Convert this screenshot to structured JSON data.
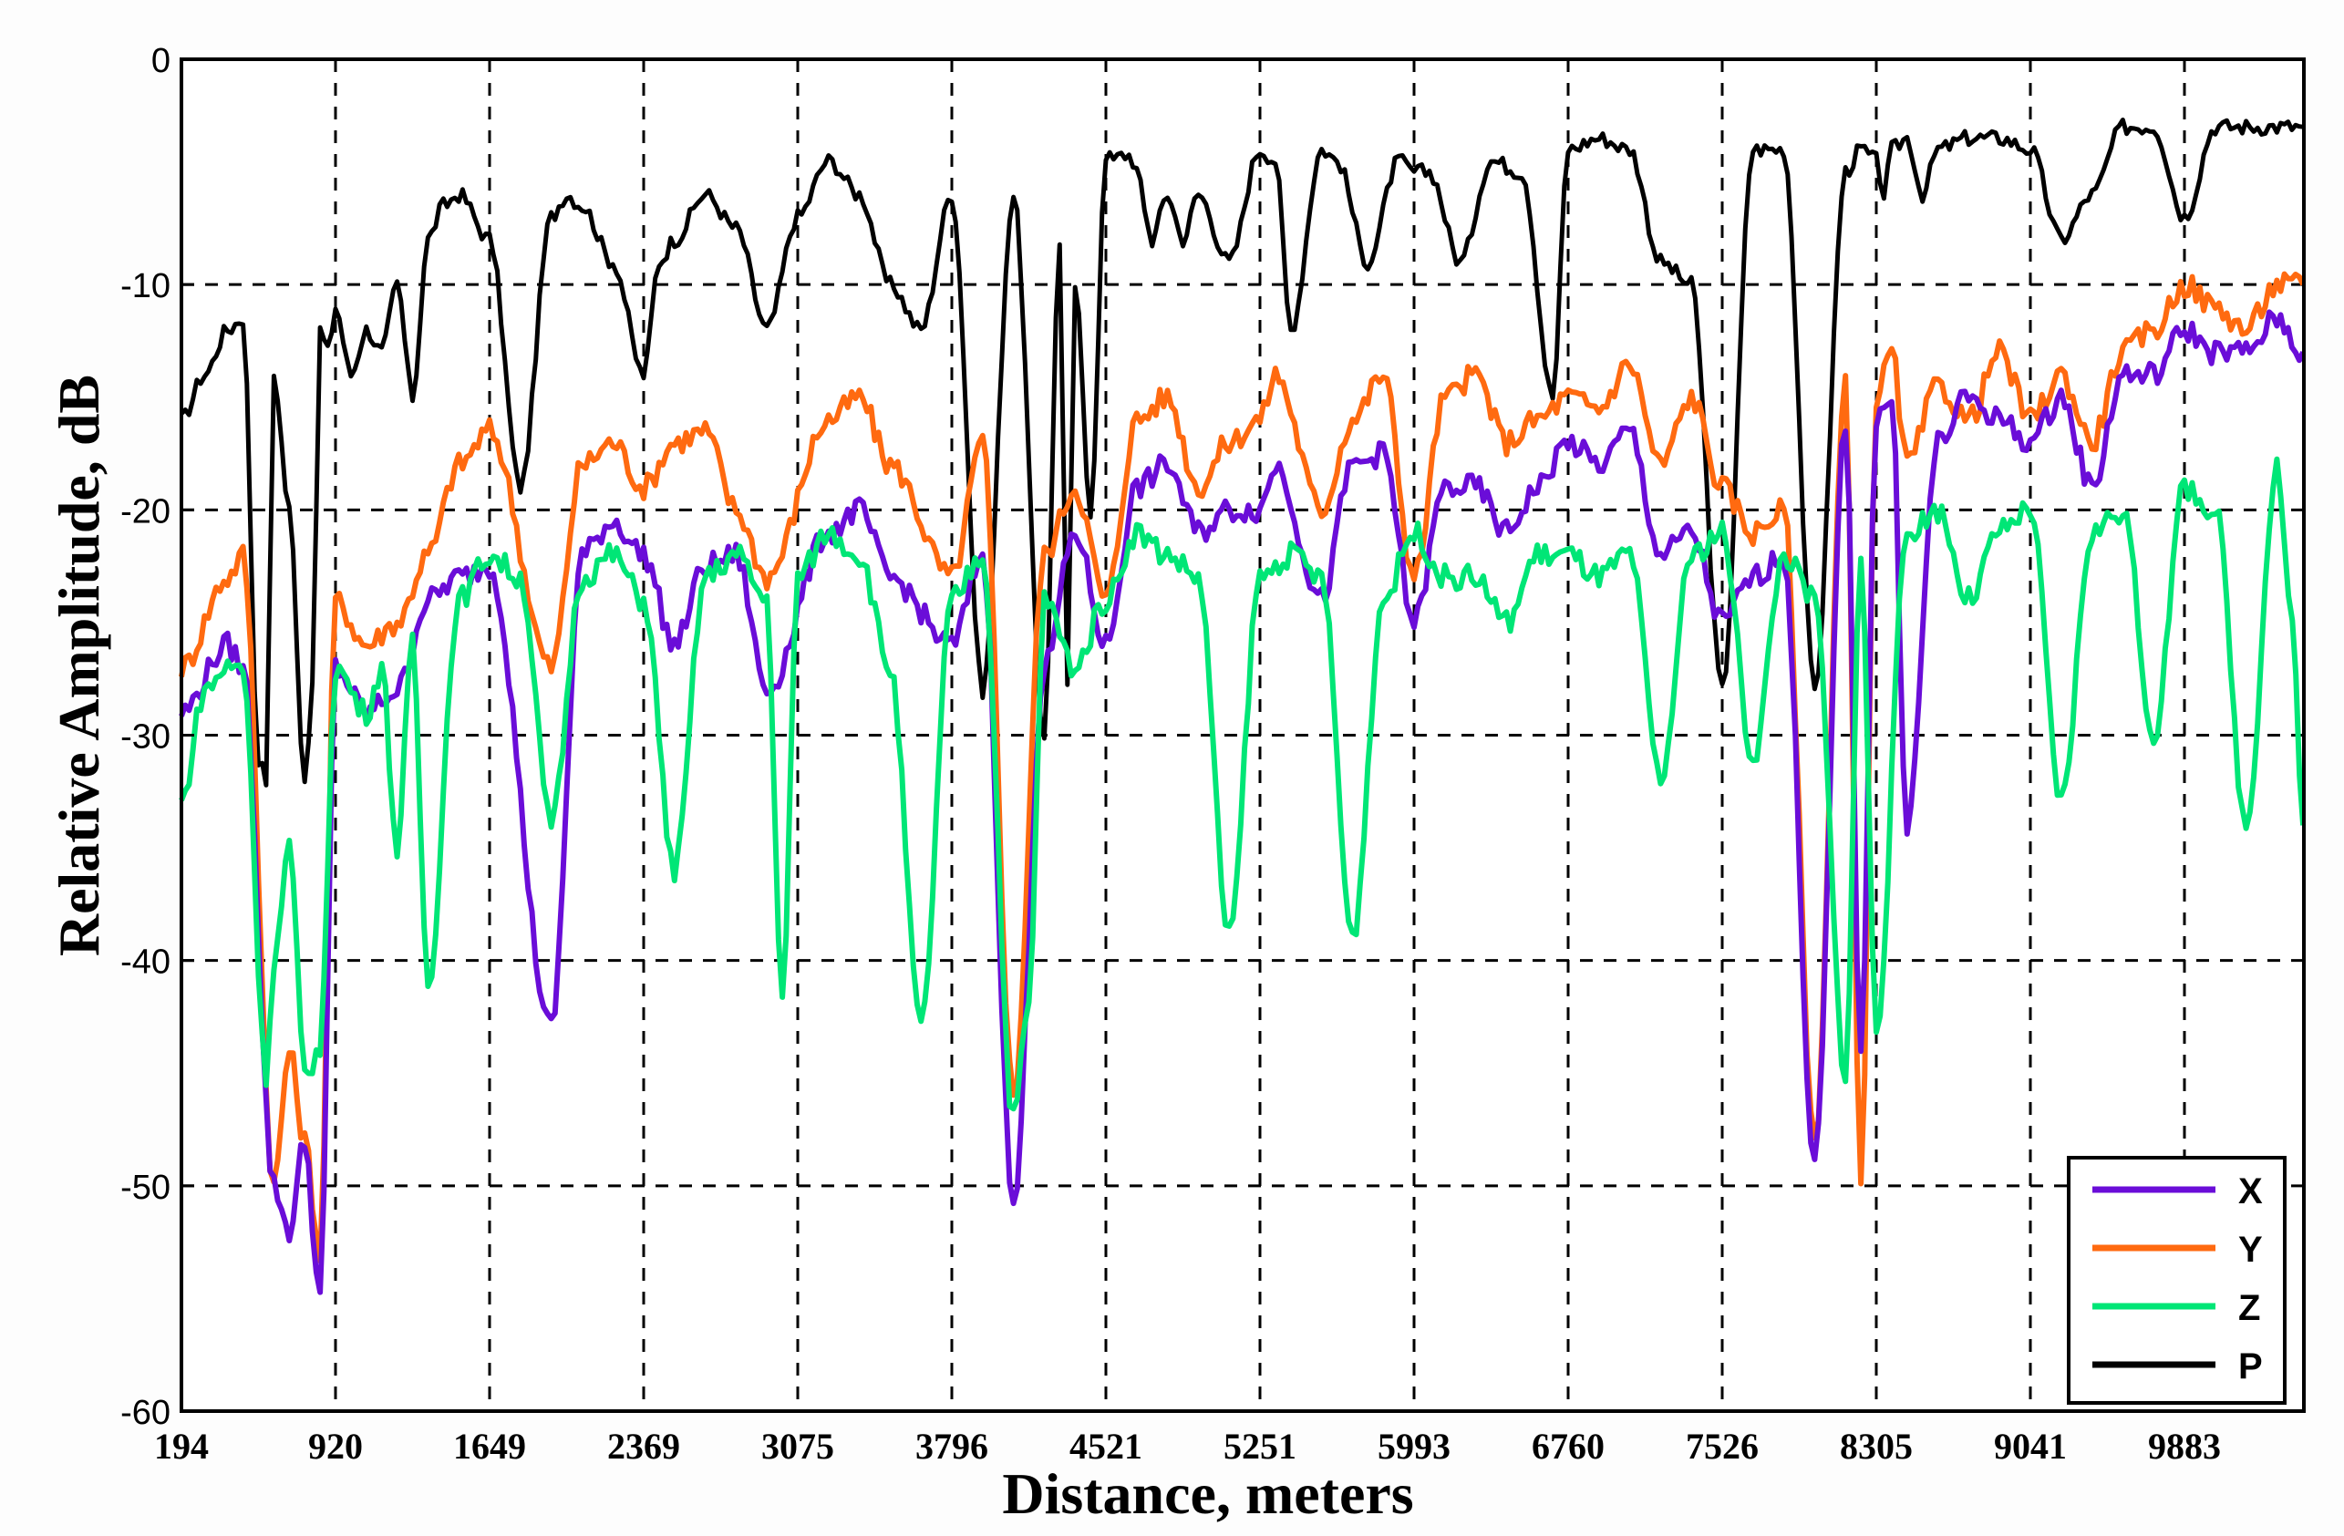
{
  "chart_data": {
    "type": "line",
    "title": "",
    "xlabel": "Distance, meters",
    "ylabel": "Relative Amplitude, dB",
    "ylim": [
      -60,
      0
    ],
    "yticks": [
      0,
      -10,
      -20,
      -30,
      -40,
      -50,
      -60
    ],
    "xtick_labels": [
      "194",
      "920",
      "1649",
      "2369",
      "3075",
      "3796",
      "4521",
      "5251",
      "5993",
      "6760",
      "7526",
      "8305",
      "9041",
      "9883"
    ],
    "x_range_ticks": [
      0,
      13.77
    ],
    "grid": true,
    "legend_position": "lower right",
    "legend": [
      "X",
      "Y",
      "Z",
      "P"
    ],
    "colors": {
      "X": "#6a0dd8",
      "Y": "#ff6a10",
      "Z": "#00e676",
      "P": "#000000"
    },
    "x_note": "x values below are in tick-index units (0 = 194 m, 1 = 920 m, ... 13 = 9883 m; right edge ≈ 13.77)",
    "series": [
      {
        "name": "P",
        "x": [
          0,
          0.15,
          0.3,
          0.4,
          0.5,
          0.55,
          0.6,
          0.7,
          0.8,
          0.85,
          0.9,
          0.95,
          1.0,
          1.1,
          1.2,
          1.3,
          1.4,
          1.5,
          1.6,
          1.7,
          1.8,
          2.0,
          2.2,
          2.4,
          2.5,
          2.6,
          2.8,
          3.0,
          3.1,
          3.2,
          3.4,
          3.6,
          3.8,
          4.0,
          4.2,
          4.4,
          4.6,
          4.8,
          5.0,
          5.2,
          5.4,
          5.6,
          5.7,
          5.75,
          5.8,
          5.9,
          6.0,
          6.1,
          6.2,
          6.3,
          6.4,
          6.5,
          6.6,
          6.8,
          7.0,
          7.1,
          7.2,
          7.4,
          7.5,
          7.7,
          7.9,
          8.0,
          8.1,
          8.3,
          8.5,
          8.7,
          8.9,
          9.0,
          9.2,
          9.4,
          9.6,
          9.8,
          10.0,
          10.2,
          10.4,
          10.6,
          10.8,
          10.9,
          11.0,
          11.05,
          11.1,
          11.2,
          11.3,
          11.4,
          11.6,
          11.8,
          12.0,
          12.2,
          12.4,
          12.6,
          12.8,
          13.0,
          13.2,
          13.4,
          13.6,
          13.77
        ],
        "y": [
          -16,
          -14,
          -12,
          -11.5,
          -31,
          -32,
          -14,
          -20,
          -32,
          -28,
          -12,
          -13,
          -11,
          -14,
          -12,
          -13,
          -10,
          -15,
          -8,
          -6.5,
          -6,
          -8,
          -19,
          -7,
          -6,
          -6.5,
          -9,
          -14,
          -9,
          -8,
          -6,
          -7.5,
          -12,
          -7,
          -4.5,
          -6,
          -10,
          -12,
          -6,
          -28,
          -6,
          -30,
          -8,
          -28,
          -10,
          -20,
          -4.5,
          -4,
          -5,
          -8,
          -6,
          -8,
          -6,
          -9,
          -4,
          -4.5,
          -12,
          -4,
          -4.5,
          -9,
          -4.5,
          -5,
          -5,
          -9,
          -4.5,
          -5,
          -15,
          -4,
          -3.5,
          -4,
          -9,
          -10,
          -28,
          -4,
          -4,
          -28,
          -5,
          -4,
          -4.5,
          -6,
          -4,
          -3.5,
          -6,
          -4,
          -3.5,
          -3.5,
          -4,
          -8,
          -6,
          -3,
          -3,
          -7,
          -3,
          -3,
          -3,
          -3
        ]
      },
      {
        "name": "Y",
        "x": [
          0,
          0.3,
          0.4,
          0.6,
          0.7,
          0.8,
          0.9,
          1.0,
          1.2,
          1.4,
          1.6,
          1.8,
          2.0,
          2.4,
          2.6,
          2.8,
          3.0,
          3.2,
          3.4,
          3.6,
          3.8,
          4.2,
          4.4,
          4.6,
          5.0,
          5.2,
          5.4,
          5.6,
          5.8,
          6.0,
          6.2,
          6.4,
          6.6,
          6.8,
          7.0,
          7.1,
          7.4,
          7.6,
          7.8,
          8.0,
          8.2,
          8.4,
          8.6,
          8.8,
          9.0,
          9.2,
          9.4,
          9.6,
          9.8,
          10.0,
          10.2,
          10.4,
          10.6,
          10.8,
          10.9,
          11.0,
          11.1,
          11.2,
          11.4,
          11.6,
          11.8,
          12.0,
          12.2,
          12.4,
          12.6,
          12.8,
          13.0,
          13.2,
          13.4,
          13.6,
          13.77
        ],
        "y": [
          -27,
          -23,
          -22,
          -50,
          -44,
          -48,
          -53,
          -24,
          -26,
          -25,
          -22,
          -18,
          -16.5,
          -27,
          -18,
          -17,
          -19,
          -17,
          -16.5,
          -20,
          -23,
          -16,
          -15,
          -18,
          -23,
          -17,
          -46,
          -22,
          -19,
          -24,
          -16,
          -15,
          -19,
          -17,
          -16,
          -14,
          -20,
          -16,
          -14,
          -23,
          -15,
          -14,
          -17,
          -16,
          -15,
          -15.5,
          -13.5,
          -18,
          -15,
          -19,
          -21,
          -20,
          -48,
          -14.5,
          -50,
          -15,
          -13,
          -18,
          -14.5,
          -16,
          -13,
          -16,
          -14,
          -17,
          -13,
          -12,
          -10,
          -11,
          -12,
          -10,
          -10
        ]
      },
      {
        "name": "X",
        "x": [
          0,
          0.3,
          0.4,
          0.6,
          0.7,
          0.8,
          0.9,
          1.0,
          1.2,
          1.4,
          1.6,
          1.8,
          2.0,
          2.4,
          2.6,
          2.8,
          3.0,
          3.2,
          3.4,
          3.6,
          3.8,
          4.2,
          4.4,
          4.6,
          5.0,
          5.2,
          5.4,
          5.6,
          5.8,
          6.0,
          6.2,
          6.4,
          6.6,
          6.8,
          7.0,
          7.1,
          7.4,
          7.6,
          7.8,
          8.0,
          8.2,
          8.4,
          8.6,
          8.8,
          9.0,
          9.2,
          9.4,
          9.6,
          9.8,
          10.0,
          10.2,
          10.4,
          10.6,
          10.8,
          10.9,
          11.0,
          11.1,
          11.2,
          11.4,
          11.6,
          11.8,
          12.0,
          12.2,
          12.4,
          12.6,
          12.8,
          13.0,
          13.2,
          13.4,
          13.6,
          13.77
        ],
        "y": [
          -29,
          -26,
          -27,
          -50,
          -52,
          -48,
          -55,
          -27,
          -29,
          -28,
          -24,
          -23,
          -22.5,
          -43,
          -22,
          -20.5,
          -22,
          -26,
          -22.5,
          -22,
          -28,
          -21,
          -20,
          -23,
          -26,
          -22,
          -51,
          -27,
          -21,
          -26,
          -19,
          -18,
          -21,
          -20,
          -20,
          -18,
          -24,
          -18,
          -17.5,
          -25,
          -19,
          -19,
          -21,
          -19,
          -17,
          -18,
          -16.5,
          -22,
          -21,
          -25,
          -23,
          -22,
          -49,
          -16,
          -44,
          -16,
          -15,
          -34,
          -17,
          -15,
          -16,
          -17,
          -15,
          -19,
          -14,
          -14,
          -12,
          -13,
          -13,
          -11.5,
          -13
        ]
      },
      {
        "name": "Z",
        "x": [
          0,
          0.15,
          0.3,
          0.4,
          0.55,
          0.6,
          0.7,
          0.8,
          0.9,
          1.0,
          1.2,
          1.3,
          1.4,
          1.5,
          1.6,
          1.8,
          2.0,
          2.2,
          2.4,
          2.6,
          2.8,
          3.0,
          3.2,
          3.4,
          3.6,
          3.8,
          3.9,
          4.0,
          4.2,
          4.4,
          4.6,
          4.8,
          5.0,
          5.2,
          5.4,
          5.5,
          5.6,
          5.8,
          6.0,
          6.2,
          6.4,
          6.6,
          6.8,
          7.0,
          7.2,
          7.4,
          7.6,
          7.8,
          8.0,
          8.2,
          8.4,
          8.6,
          8.8,
          9.0,
          9.2,
          9.4,
          9.6,
          9.8,
          10.0,
          10.2,
          10.4,
          10.6,
          10.8,
          10.9,
          11.0,
          11.2,
          11.4,
          11.6,
          11.8,
          12.0,
          12.2,
          12.4,
          12.6,
          12.8,
          13.0,
          13.2,
          13.4,
          13.6,
          13.7,
          13.77
        ],
        "y": [
          -33,
          -28,
          -27,
          -27,
          -45,
          -40,
          -35,
          -45,
          -44,
          -27,
          -29,
          -27,
          -35,
          -26,
          -41,
          -24,
          -22,
          -23,
          -34,
          -23,
          -22,
          -24,
          -36,
          -23,
          -22,
          -24,
          -42,
          -23,
          -21,
          -22,
          -27,
          -43,
          -24,
          -22,
          -47,
          -42,
          -24,
          -27,
          -24,
          -21,
          -22,
          -23,
          -39,
          -23,
          -22,
          -23,
          -39,
          -24,
          -21,
          -23,
          -23,
          -25,
          -22,
          -22,
          -23,
          -22,
          -32,
          -22,
          -21,
          -31,
          -22,
          -24,
          -45,
          -22,
          -43,
          -21,
          -20,
          -24,
          -21,
          -20,
          -33,
          -21,
          -20,
          -30,
          -19,
          -20,
          -34,
          -18,
          -25,
          -34
        ]
      }
    ]
  },
  "axes": {
    "xlabel": "Distance, meters",
    "ylabel": "Relative Amplitude, dB",
    "yticks": [
      "0",
      "-10",
      "-20",
      "-30",
      "-40",
      "-50",
      "-60"
    ],
    "xticks": [
      "194",
      "920",
      "1649",
      "2369",
      "3075",
      "3796",
      "4521",
      "5251",
      "5993",
      "6760",
      "7526",
      "8305",
      "9041",
      "9883"
    ]
  },
  "legend": {
    "items": [
      {
        "label": "X",
        "color": "#6a0dd8"
      },
      {
        "label": "Y",
        "color": "#ff6a10"
      },
      {
        "label": "Z",
        "color": "#00e676"
      },
      {
        "label": "P",
        "color": "#000000"
      }
    ]
  }
}
